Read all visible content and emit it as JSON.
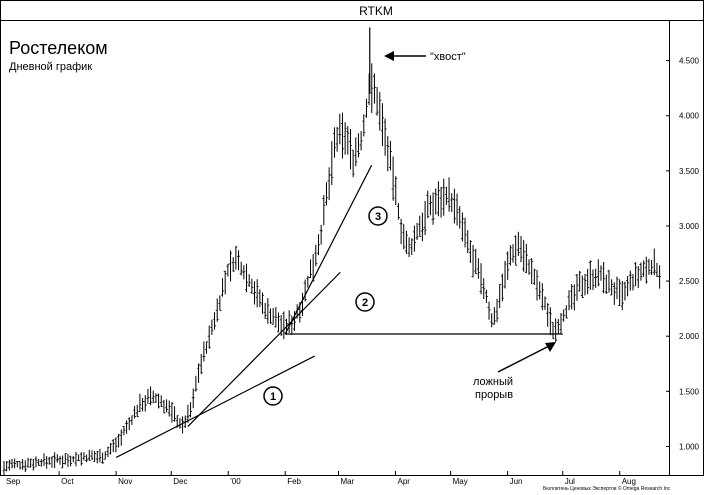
{
  "chart_data": {
    "type": "ohlc_bar",
    "ticker": "RTKM",
    "title": "Ростелеком",
    "subtitle": "Дневной график",
    "y_axis_position": "right",
    "ylim": [
      0.75,
      4.85
    ],
    "y_ticks": [
      1.0,
      1.5,
      2.0,
      2.5,
      3.0,
      3.5,
      4.0,
      4.5
    ],
    "y_tick_labels": [
      "1.000",
      "1.500",
      "2.000",
      "2.500",
      "3.000",
      "3.500",
      "4.000",
      "4.500"
    ],
    "x_tick_labels": [
      "Sep",
      "Oct",
      "Nov",
      "Dec",
      "'00",
      "Feb",
      "Mar",
      "Apr",
      "May",
      "Jun",
      "Jul",
      "Aug"
    ],
    "x_tick_days": [
      0,
      30,
      61,
      91,
      122,
      153,
      182,
      213,
      243,
      274,
      304,
      335
    ],
    "x_range_days": [
      0,
      358
    ],
    "price_path": [
      [
        0,
        0.82
      ],
      [
        10,
        0.84
      ],
      [
        25,
        0.87
      ],
      [
        45,
        0.9
      ],
      [
        55,
        0.92
      ],
      [
        62,
        1.05
      ],
      [
        68,
        1.2
      ],
      [
        74,
        1.38
      ],
      [
        80,
        1.45
      ],
      [
        86,
        1.4
      ],
      [
        92,
        1.3
      ],
      [
        97,
        1.18
      ],
      [
        102,
        1.35
      ],
      [
        106,
        1.7
      ],
      [
        112,
        2.0
      ],
      [
        117,
        2.3
      ],
      [
        122,
        2.6
      ],
      [
        126,
        2.7
      ],
      [
        131,
        2.58
      ],
      [
        137,
        2.4
      ],
      [
        142,
        2.25
      ],
      [
        148,
        2.15
      ],
      [
        153,
        2.08
      ],
      [
        158,
        2.15
      ],
      [
        163,
        2.35
      ],
      [
        168,
        2.65
      ],
      [
        172,
        2.9
      ],
      [
        176,
        3.3
      ],
      [
        180,
        3.75
      ],
      [
        185,
        3.85
      ],
      [
        190,
        3.62
      ],
      [
        195,
        3.8
      ],
      [
        199,
        4.3
      ],
      [
        203,
        4.15
      ],
      [
        207,
        3.85
      ],
      [
        211,
        3.5
      ],
      [
        216,
        3.0
      ],
      [
        220,
        2.75
      ],
      [
        225,
        2.95
      ],
      [
        231,
        3.15
      ],
      [
        237,
        3.25
      ],
      [
        241,
        3.3
      ],
      [
        246,
        3.15
      ],
      [
        250,
        2.95
      ],
      [
        255,
        2.7
      ],
      [
        261,
        2.45
      ],
      [
        266,
        2.1
      ],
      [
        270,
        2.4
      ],
      [
        275,
        2.7
      ],
      [
        280,
        2.85
      ],
      [
        284,
        2.7
      ],
      [
        289,
        2.5
      ],
      [
        294,
        2.3
      ],
      [
        299,
        2.05
      ],
      [
        303,
        2.15
      ],
      [
        308,
        2.3
      ],
      [
        313,
        2.45
      ],
      [
        319,
        2.55
      ],
      [
        325,
        2.55
      ],
      [
        330,
        2.45
      ],
      [
        336,
        2.35
      ],
      [
        342,
        2.5
      ],
      [
        349,
        2.6
      ],
      [
        353,
        2.65
      ],
      [
        358,
        2.55
      ]
    ],
    "tail_spike": {
      "day": 199,
      "high": 4.8,
      "low": 4.2
    },
    "trendlines": [
      {
        "id": "1",
        "from": [
          61,
          0.9
        ],
        "to": [
          169,
          1.82
        ]
      },
      {
        "id": "2",
        "from": [
          100,
          1.18
        ],
        "to": [
          183,
          2.58
        ]
      },
      {
        "id": "3",
        "from": [
          153,
          2.02
        ],
        "to": [
          200,
          3.55
        ]
      }
    ],
    "support_line": {
      "from": [
        153,
        2.02
      ],
      "to": [
        304,
        2.02
      ]
    },
    "circle_labels": [
      "1",
      "2",
      "3"
    ],
    "annotation_tail": "\"хвост\"",
    "annotation_breakout_line1": "ложный",
    "annotation_breakout_line2": "прорыв",
    "credit": "Бюллетень Ценовых Экспертов © Omega Research Inc"
  }
}
